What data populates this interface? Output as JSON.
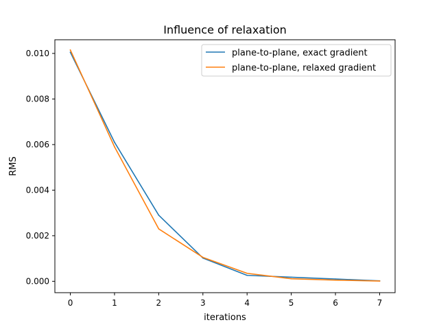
{
  "chart_data": {
    "type": "line",
    "title": "Influence of relaxation",
    "xlabel": "iterations",
    "ylabel": "RMS",
    "x": [
      0,
      1,
      2,
      3,
      4,
      5,
      6,
      7
    ],
    "xlim": [
      -0.35,
      7.35
    ],
    "ylim": [
      -0.0005,
      0.0106
    ],
    "xticks": [
      0,
      1,
      2,
      3,
      4,
      5,
      6,
      7
    ],
    "xtick_labels": [
      "0",
      "1",
      "2",
      "3",
      "4",
      "5",
      "6",
      "7"
    ],
    "yticks": [
      0,
      0.002,
      0.004,
      0.006,
      0.008,
      0.01
    ],
    "ytick_labels": [
      "0.000",
      "0.002",
      "0.004",
      "0.006",
      "0.008",
      "0.010"
    ],
    "grid": false,
    "legend_position": "top-right",
    "series": [
      {
        "name": "plane-to-plane, exact gradient",
        "color": "#1f77b4",
        "values": [
          0.01005,
          0.0061,
          0.0029,
          0.00102,
          0.00026,
          0.00018,
          0.0001,
          2e-05
        ]
      },
      {
        "name": "plane-to-plane, relaxed gradient",
        "color": "#ff7f0e",
        "values": [
          0.01015,
          0.0059,
          0.0023,
          0.00105,
          0.00035,
          0.00011,
          5e-05,
          1e-05
        ]
      }
    ]
  }
}
